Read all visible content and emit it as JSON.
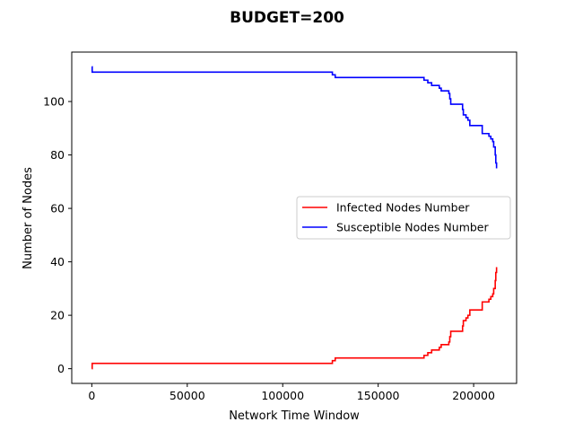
{
  "chart_data": {
    "type": "line",
    "title": "BUDGET=200",
    "xlabel": "Network Time Window",
    "ylabel": "Number of Nodes",
    "xlim": [
      -10500,
      222500
    ],
    "ylim": [
      -5.5,
      118.5
    ],
    "xticks": [
      0,
      50000,
      100000,
      150000,
      200000
    ],
    "xtick_labels": [
      "0",
      "50000",
      "100000",
      "150000",
      "200000"
    ],
    "yticks": [
      0,
      20,
      40,
      60,
      80,
      100
    ],
    "ytick_labels": [
      "0",
      "20",
      "40",
      "60",
      "80",
      "100"
    ],
    "grid": false,
    "legend_position": "center-right",
    "series": [
      {
        "name": "Infected Nodes Number",
        "color": "#ff0000",
        "step": true,
        "points": [
          [
            0,
            0
          ],
          [
            200,
            2
          ],
          [
            125000,
            2
          ],
          [
            126000,
            3
          ],
          [
            127500,
            4
          ],
          [
            173000,
            4
          ],
          [
            174000,
            5
          ],
          [
            176000,
            6
          ],
          [
            178000,
            7
          ],
          [
            182000,
            8
          ],
          [
            183000,
            9
          ],
          [
            187000,
            10
          ],
          [
            187500,
            12
          ],
          [
            188000,
            14
          ],
          [
            194000,
            14
          ],
          [
            194200,
            16
          ],
          [
            194600,
            18
          ],
          [
            196000,
            19
          ],
          [
            197000,
            20
          ],
          [
            198000,
            22
          ],
          [
            204000,
            22
          ],
          [
            204500,
            25
          ],
          [
            208000,
            26
          ],
          [
            209000,
            27
          ],
          [
            210000,
            28
          ],
          [
            210500,
            30
          ],
          [
            211000,
            30
          ],
          [
            211300,
            33
          ],
          [
            211600,
            36
          ],
          [
            212000,
            38
          ]
        ]
      },
      {
        "name": "Susceptible Nodes Number",
        "color": "#0000ff",
        "step": true,
        "points": [
          [
            0,
            113
          ],
          [
            200,
            111
          ],
          [
            125000,
            111
          ],
          [
            126000,
            110
          ],
          [
            127500,
            109
          ],
          [
            173000,
            109
          ],
          [
            174000,
            108
          ],
          [
            176000,
            107
          ],
          [
            178000,
            106
          ],
          [
            182000,
            105
          ],
          [
            183000,
            104
          ],
          [
            187000,
            103
          ],
          [
            187500,
            101
          ],
          [
            188000,
            99
          ],
          [
            194000,
            99
          ],
          [
            194200,
            97
          ],
          [
            194600,
            95
          ],
          [
            196000,
            94
          ],
          [
            197000,
            93
          ],
          [
            198000,
            91
          ],
          [
            204000,
            91
          ],
          [
            204500,
            88
          ],
          [
            208000,
            87
          ],
          [
            209000,
            86
          ],
          [
            210000,
            85
          ],
          [
            210500,
            83
          ],
          [
            211000,
            83
          ],
          [
            211300,
            80
          ],
          [
            211600,
            77
          ],
          [
            212000,
            75
          ]
        ]
      }
    ]
  }
}
